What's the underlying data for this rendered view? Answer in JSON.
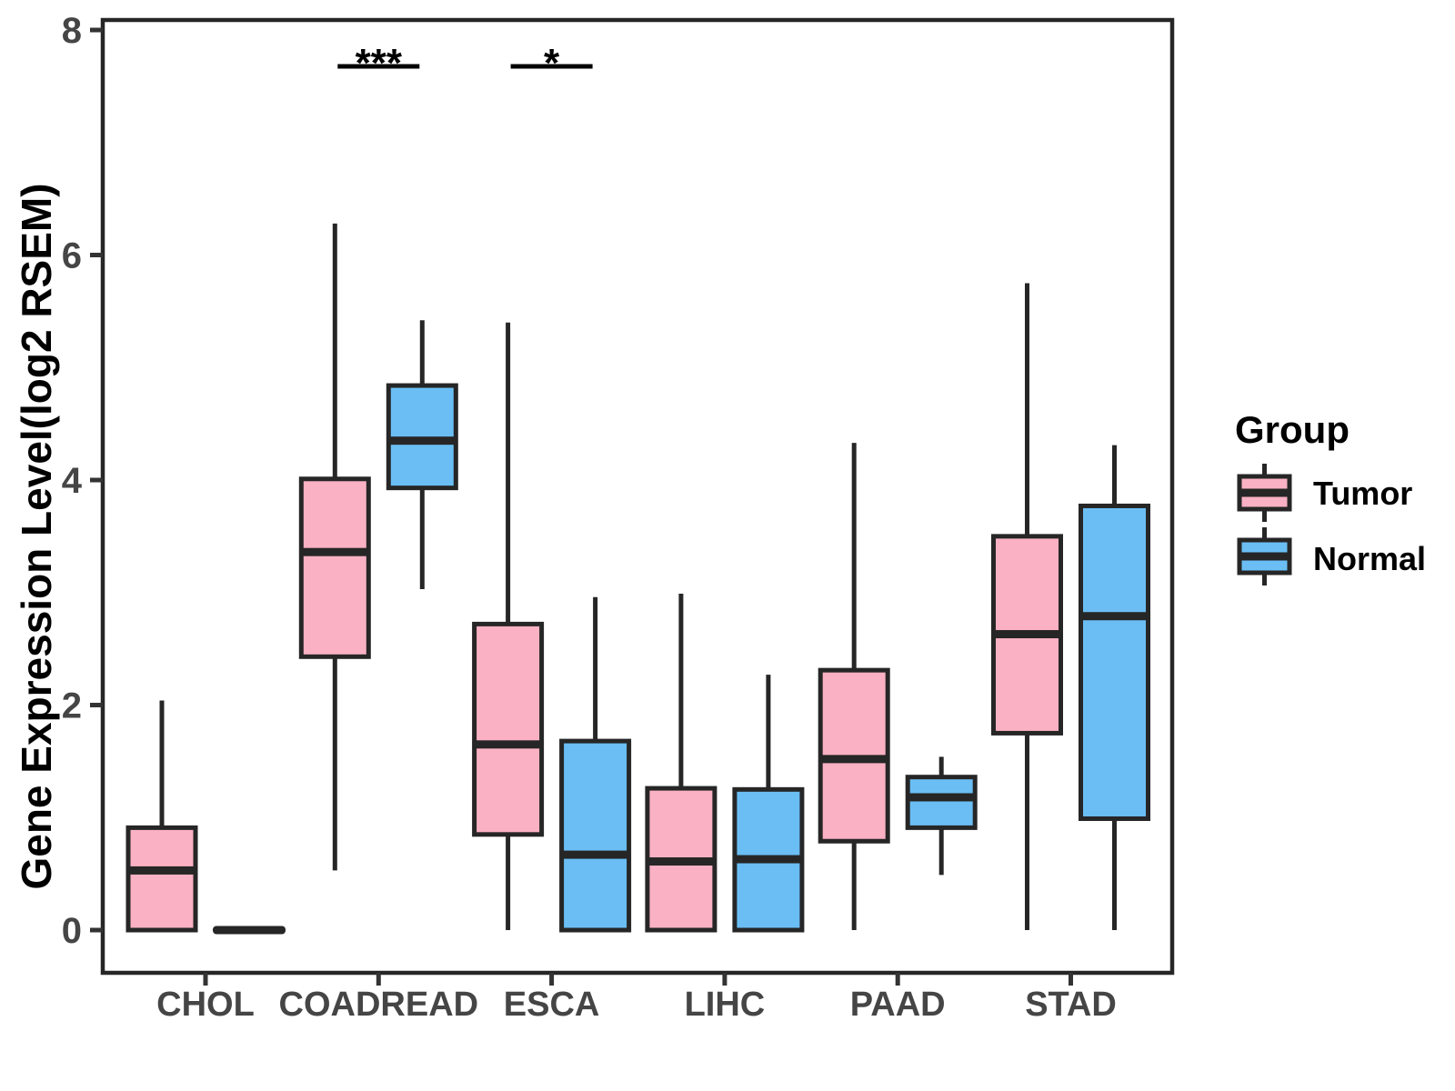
{
  "y_axis": {
    "title": "Gene Expression Level(log2 RSEM)",
    "ticks": [
      0,
      2,
      4,
      6,
      8
    ]
  },
  "x_axis": {
    "categories": [
      "CHOL",
      "COADREAD",
      "ESCA",
      "LIHC",
      "PAAD",
      "STAD"
    ]
  },
  "legend": {
    "title": "Group",
    "items": [
      {
        "label": "Tumor",
        "color": "#FAB1C3"
      },
      {
        "label": "Normal",
        "color": "#6ABEF4"
      }
    ]
  },
  "style": {
    "stroke_color": "#262626",
    "tick_text_color": "#454545",
    "background": "#ffffff"
  },
  "chart_data": {
    "type": "boxplot",
    "title": "",
    "xlabel": "",
    "ylabel": "Gene Expression Level(log2 RSEM)",
    "categories": [
      "CHOL",
      "COADREAD",
      "ESCA",
      "LIHC",
      "PAAD",
      "STAD"
    ],
    "ylim": [
      -0.38,
      8.09
    ],
    "yticks": [
      0,
      2,
      4,
      6,
      8
    ],
    "grid": false,
    "legend_position": "right",
    "series": [
      {
        "name": "Tumor",
        "color": "#FAB1C3",
        "values": [
          {
            "min": 0.0,
            "q1": 0.0,
            "median": 0.53,
            "q3": 0.91,
            "max": 2.04
          },
          {
            "min": 0.53,
            "q1": 2.43,
            "median": 3.36,
            "q3": 4.01,
            "max": 6.28
          },
          {
            "min": 0.0,
            "q1": 0.85,
            "median": 1.65,
            "q3": 2.72,
            "max": 5.4
          },
          {
            "min": 0.0,
            "q1": 0.0,
            "median": 0.61,
            "q3": 1.26,
            "max": 2.99
          },
          {
            "min": 0.0,
            "q1": 0.79,
            "median": 1.52,
            "q3": 2.31,
            "max": 4.33
          },
          {
            "min": 0.0,
            "q1": 1.75,
            "median": 2.63,
            "q3": 3.5,
            "max": 5.75
          }
        ]
      },
      {
        "name": "Normal",
        "color": "#6ABEF4",
        "values": [
          {
            "min": 0.0,
            "q1": 0.0,
            "median": 0.0,
            "q3": 0.0,
            "max": 0.0
          },
          {
            "min": 3.03,
            "q1": 3.93,
            "median": 4.35,
            "q3": 4.84,
            "max": 5.42
          },
          {
            "min": 0.0,
            "q1": 0.0,
            "median": 0.67,
            "q3": 1.68,
            "max": 2.96
          },
          {
            "min": 0.0,
            "q1": 0.0,
            "median": 0.63,
            "q3": 1.25,
            "max": 2.27
          },
          {
            "min": 0.49,
            "q1": 0.91,
            "median": 1.18,
            "q3": 1.36,
            "max": 1.54
          },
          {
            "min": 0.0,
            "q1": 0.99,
            "median": 2.79,
            "q3": 3.77,
            "max": 4.31
          }
        ]
      }
    ],
    "significance": [
      {
        "category": "COADREAD",
        "label": "***"
      },
      {
        "category": "ESCA",
        "label": "*"
      }
    ]
  }
}
